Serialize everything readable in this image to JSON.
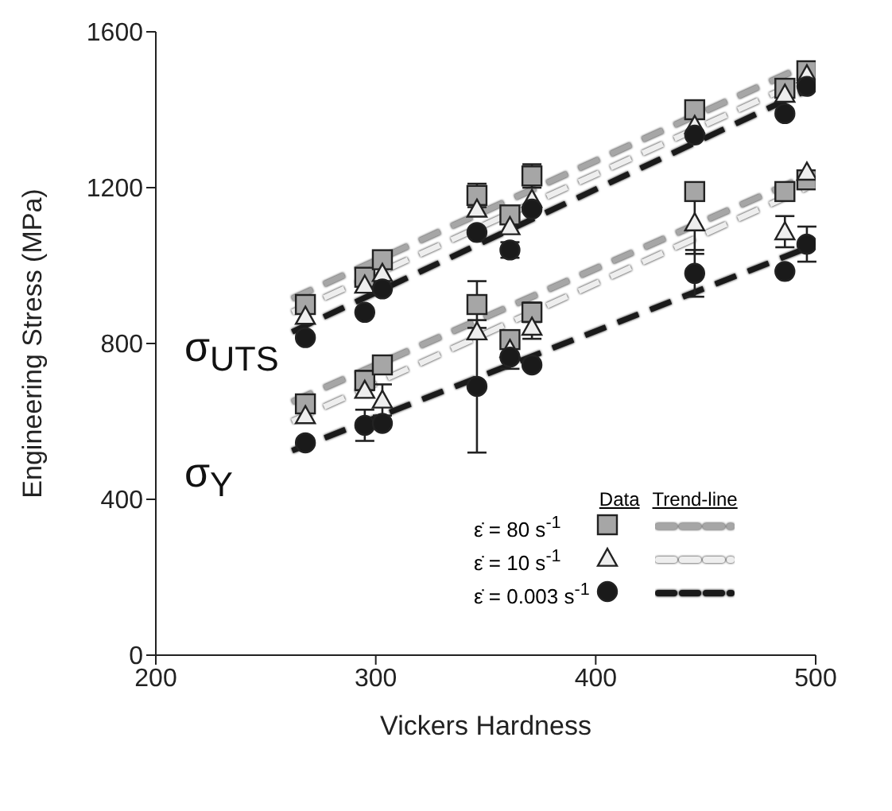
{
  "chart_data": {
    "type": "scatter",
    "xlabel": "Vickers Hardness",
    "ylabel": "Engineering Stress (MPa)",
    "xlim": [
      200,
      500
    ],
    "xticks": [
      200,
      300,
      400,
      500
    ],
    "ylim": [
      0,
      1600
    ],
    "yticks": [
      0,
      400,
      800,
      1200,
      1600
    ],
    "grid": false,
    "legend": "bottom right",
    "annotations": [
      "σ$_{UTS}$",
      "σ$_{Y}$",
      "Data",
      "Trend-line"
    ],
    "series": [
      {
        "name": "ε̇ = 80 s$^{-1}$",
        "marker": "square",
        "color": "#a6a6a6",
        "x": [
          268,
          295,
          303,
          346,
          361,
          371,
          445,
          486,
          496,
          268,
          295,
          303,
          346,
          361,
          371,
          445,
          486,
          496
        ],
        "values": [
          900,
          970,
          1015,
          1180,
          1130,
          1230,
          1400,
          1455,
          1500,
          645,
          705,
          745,
          900,
          810,
          880,
          1190,
          1190,
          1220
        ],
        "errors": [
          null,
          null,
          15,
          30,
          null,
          30,
          null,
          null,
          null,
          null,
          25,
          20,
          60,
          null,
          25,
          null,
          null,
          null
        ]
      },
      {
        "name": "ε̇ = 10 s$^{-1}$",
        "marker": "triangle",
        "color": "#eeeeee",
        "x": [
          268,
          295,
          303,
          346,
          361,
          371,
          445,
          486,
          496,
          268,
          295,
          303,
          346,
          361,
          371,
          445,
          486,
          496
        ],
        "values": [
          870,
          950,
          980,
          1145,
          1100,
          1170,
          1360,
          1440,
          1490,
          615,
          680,
          655,
          830,
          785,
          842,
          1110,
          1087,
          1240
        ],
        "errors": [
          null,
          null,
          null,
          null,
          null,
          null,
          null,
          null,
          null,
          null,
          null,
          40,
          null,
          null,
          30,
          80,
          40,
          null
        ]
      },
      {
        "name": "ε̇ = 0.003 s$^{-1}$",
        "marker": "circle",
        "color": "#1a1a1a",
        "x": [
          268,
          295,
          303,
          346,
          361,
          371,
          445,
          486,
          496,
          268,
          295,
          303,
          346,
          361,
          371,
          445,
          486,
          496
        ],
        "values": [
          815,
          880,
          940,
          1085,
          1040,
          1145,
          1335,
          1390,
          1460,
          545,
          590,
          595,
          690,
          765,
          745,
          980,
          985,
          1055
        ],
        "errors": [
          null,
          null,
          null,
          null,
          20,
          null,
          null,
          null,
          null,
          null,
          40,
          null,
          170,
          30,
          null,
          60,
          null,
          45
        ]
      },
      {
        "type": "line",
        "line_style": "dashed",
        "color": "#a6a6a6",
        "x": [
          262,
          496
        ],
        "values": [
          915,
          1515
        ]
      },
      {
        "type": "line",
        "line_style": "dashed",
        "color": "#eeeeee",
        "x": [
          262,
          496
        ],
        "values": [
          880,
          1480
        ]
      },
      {
        "type": "line",
        "line_style": "dashed",
        "color": "#1a1a1a",
        "x": [
          262,
          496
        ],
        "values": [
          830,
          1450
        ]
      },
      {
        "type": "line",
        "line_style": "dashed",
        "color": "#a6a6a6",
        "x": [
          262,
          496
        ],
        "values": [
          650,
          1230
        ]
      },
      {
        "type": "line",
        "line_style": "dashed",
        "color": "#eeeeee",
        "x": [
          262,
          496
        ],
        "values": [
          600,
          1200
        ]
      },
      {
        "type": "line",
        "line_style": "dashed",
        "color": "#1a1a1a",
        "x": [
          262,
          496
        ],
        "values": [
          525,
          1045
        ]
      }
    ]
  }
}
